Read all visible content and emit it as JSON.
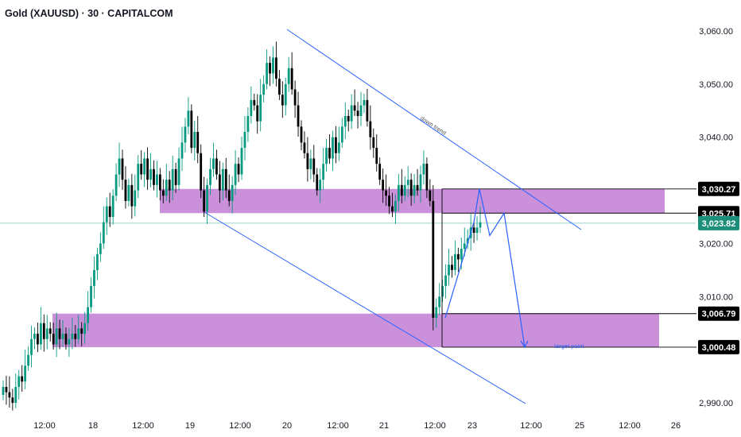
{
  "header": {
    "title": "Gold (XAUUSD) · 30 · CAPITALCOM"
  },
  "colors": {
    "up": "#089981",
    "down": "#000000",
    "zone": "#c484d6",
    "trend": "#2962ff",
    "tag_dark": "#000000",
    "tag_current": "#1b8f7a",
    "axis_text": "#131722"
  },
  "chart_data": {
    "type": "candlestick",
    "title": "Gold (XAUUSD) · 30 · CAPITALCOM",
    "ylim": [
      2988,
      3062
    ],
    "y_ticks": [
      {
        "value": 3060,
        "label": "3,060.00"
      },
      {
        "value": 3050,
        "label": "3,050.00"
      },
      {
        "value": 3040,
        "label": "3,040.00"
      },
      {
        "value": 3020,
        "label": "3,020.00"
      },
      {
        "value": 3010,
        "label": "3,010.00"
      },
      {
        "value": 2990,
        "label": "2,990.00"
      }
    ],
    "x_ticks": [
      "12:00",
      "18",
      "12:00",
      "19",
      "12:00",
      "20",
      "12:00",
      "21",
      "12:00",
      "23",
      "12:00",
      "25",
      "12:00",
      "26"
    ],
    "price_tags": [
      {
        "value": 3030.27,
        "label": "3,030.27",
        "style": "dark"
      },
      {
        "value": 3025.71,
        "label": "3,025.71",
        "style": "dark"
      },
      {
        "value": 3023.82,
        "label": "3,023.82",
        "style": "current"
      },
      {
        "value": 3006.79,
        "label": "3,006.79",
        "style": "dark"
      },
      {
        "value": 3000.48,
        "label": "3,000.48",
        "style": "dark"
      }
    ],
    "current_price": 3023.82,
    "zones": [
      {
        "y_top": 3030.27,
        "y_bottom": 3025.71
      },
      {
        "y_top": 3006.79,
        "y_bottom": 3000.48
      }
    ],
    "annotations": {
      "trendline_label": "down trend",
      "target_label": "target point"
    },
    "path_points": [
      3030.27,
      3021.5,
      3025.71,
      3000.48
    ],
    "close_series": [
      2993,
      2992,
      2991,
      2990,
      2993,
      2995,
      2994,
      2997,
      2999,
      3002,
      3003,
      3001,
      3005,
      3002,
      3004,
      3003,
      3001,
      3004,
      3002,
      3003,
      3001,
      3002,
      3003,
      3002,
      3004,
      3003,
      3005,
      3008,
      3012,
      3015,
      3018,
      3020,
      3024,
      3027,
      3025,
      3029,
      3033,
      3036,
      3032,
      3028,
      3031,
      3027,
      3030,
      3035,
      3033,
      3036,
      3032,
      3034,
      3031,
      3033,
      3030,
      3029,
      3032,
      3030,
      3034,
      3031,
      3036,
      3039,
      3042,
      3045,
      3038,
      3041,
      3037,
      3030,
      3026,
      3031,
      3034,
      3036,
      3033,
      3030,
      3034,
      3030,
      3028,
      3031,
      3035,
      3033,
      3038,
      3041,
      3044,
      3047,
      3046,
      3043,
      3048,
      3050,
      3054,
      3052,
      3055,
      3051,
      3048,
      3046,
      3050,
      3053,
      3049,
      3046,
      3042,
      3039,
      3037,
      3034,
      3036,
      3033,
      3030,
      3032,
      3035,
      3038,
      3036,
      3040,
      3037,
      3039,
      3042,
      3044,
      3043,
      3046,
      3045,
      3044,
      3046,
      3047,
      3043,
      3040,
      3038,
      3035,
      3032,
      3030,
      3029,
      3027,
      3026,
      3028,
      3031,
      3029,
      3031,
      3032,
      3029,
      3031,
      3030,
      3033,
      3035,
      3030,
      3028,
      3006,
      3008,
      3010,
      3012,
      3014,
      3016,
      3015,
      3018,
      3017,
      3019,
      3020,
      3021,
      3023,
      3022,
      3023,
      3024
    ]
  }
}
